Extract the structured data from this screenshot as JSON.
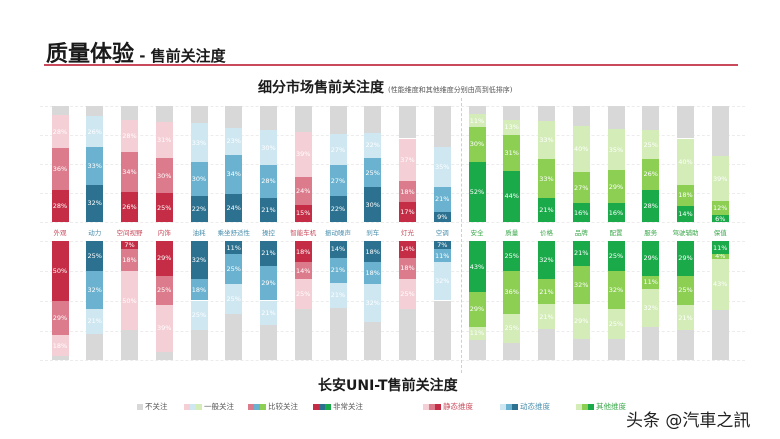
{
  "header": {
    "title_main": "质量体验",
    "title_sub": " - 售前关注度"
  },
  "top_chart": {
    "title": "细分市场售前关注度",
    "note": "(性能维度和其他维度分别由高到低排序)"
  },
  "bottom_chart": {
    "title": "长安UNI-T售前关注度"
  },
  "colors": {
    "static": [
      "#f5cfd6",
      "#dc7b8c",
      "#c42d45"
    ],
    "dynamic": [
      "#cfe7f1",
      "#6ab2cf",
      "#2c7290"
    ],
    "other": [
      "#d3ecb8",
      "#8ccf52",
      "#1aaa4a"
    ],
    "none": "#d8d8d8"
  },
  "legend": {
    "items": [
      {
        "label": "不关注"
      },
      {
        "label": "一般关注"
      },
      {
        "label": "比较关注"
      },
      {
        "label": "非常关注"
      },
      {
        "label": "静态维度"
      },
      {
        "label": "动态维度"
      },
      {
        "label": "其他维度"
      }
    ]
  },
  "watermark": "头条 @汽車之訊",
  "chart_data": [
    {
      "type": "bar",
      "stacked": true,
      "title": "细分市场售前关注度",
      "subtitle": "(性能维度和其他维度分别由高到低排序)",
      "categories": [
        "外观",
        "动力",
        "空间视野",
        "内饰",
        "油耗",
        "乘坐舒适性",
        "操控",
        "智能车机",
        "振动噪声",
        "刹车",
        "灯光",
        "空调",
        "安全",
        "质量",
        "价格",
        "品牌",
        "配置",
        "服务",
        "驾驶辅助",
        "保值"
      ],
      "dimension": [
        "static",
        "dynamic",
        "static",
        "static",
        "dynamic",
        "dynamic",
        "dynamic",
        "static",
        "dynamic",
        "dynamic",
        "static",
        "dynamic",
        "other",
        "other",
        "other",
        "other",
        "other",
        "other",
        "other",
        "other"
      ],
      "series": [
        {
          "name": "非常关注",
          "values": [
            28,
            32,
            26,
            25,
            22,
            24,
            21,
            15,
            22,
            30,
            17,
            9,
            52,
            44,
            21,
            16,
            16,
            28,
            14,
            6
          ]
        },
        {
          "name": "比较关注",
          "values": [
            36,
            33,
            34,
            30,
            30,
            34,
            28,
            24,
            27,
            25,
            18,
            21,
            30,
            31,
            33,
            27,
            29,
            26,
            18,
            12
          ]
        },
        {
          "name": "一般关注",
          "values": [
            28,
            26,
            28,
            31,
            33,
            23,
            30,
            39,
            27,
            22,
            37,
            35,
            11,
            13,
            33,
            40,
            35,
            25,
            40,
            39
          ]
        },
        {
          "name": "不关注",
          "values": [
            8,
            9,
            12,
            14,
            15,
            19,
            21,
            22,
            24,
            23,
            28,
            35,
            7,
            12,
            13,
            17,
            20,
            21,
            28,
            43
          ]
        }
      ],
      "ylim": [
        0,
        100
      ]
    },
    {
      "type": "bar",
      "stacked": true,
      "title": "长安UNI-T售前关注度",
      "categories": [
        "外观",
        "动力",
        "空间视野",
        "内饰",
        "油耗",
        "乘坐舒适性",
        "操控",
        "智能车机",
        "振动噪声",
        "刹车",
        "灯光",
        "空调",
        "安全",
        "质量",
        "价格",
        "品牌",
        "配置",
        "服务",
        "驾驶辅助",
        "保值"
      ],
      "dimension": [
        "static",
        "dynamic",
        "static",
        "static",
        "dynamic",
        "dynamic",
        "dynamic",
        "static",
        "dynamic",
        "dynamic",
        "static",
        "dynamic",
        "other",
        "other",
        "other",
        "other",
        "other",
        "other",
        "other",
        "other"
      ],
      "series": [
        {
          "name": "非常关注",
          "values": [
            50,
            25,
            7,
            29,
            32,
            11,
            21,
            18,
            14,
            18,
            14,
            7,
            43,
            25,
            32,
            21,
            25,
            29,
            29,
            11
          ]
        },
        {
          "name": "比较关注",
          "values": [
            29,
            32,
            18,
            25,
            18,
            25,
            29,
            14,
            21,
            18,
            18,
            11,
            29,
            36,
            21,
            32,
            32,
            11,
            25,
            4
          ]
        },
        {
          "name": "一般关注",
          "values": [
            18,
            21,
            50,
            39,
            25,
            25,
            21,
            25,
            21,
            32,
            25,
            32,
            11,
            25,
            21,
            29,
            25,
            32,
            21,
            43
          ]
        },
        {
          "name": "不关注",
          "values": [
            3,
            22,
            25,
            7,
            25,
            39,
            29,
            43,
            44,
            32,
            43,
            50,
            17,
            14,
            26,
            18,
            18,
            28,
            25,
            42
          ]
        }
      ],
      "ylim": [
        0,
        100
      ]
    }
  ]
}
